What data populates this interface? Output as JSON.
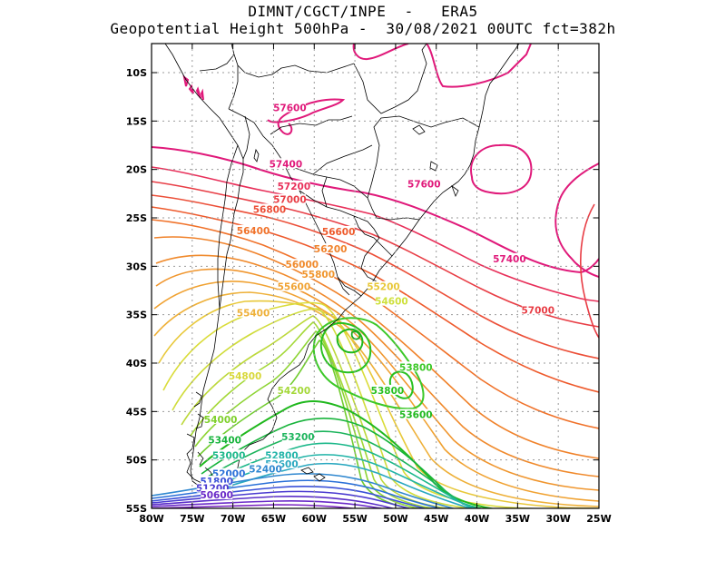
{
  "header": {
    "line1": "DIMNT/CGCT/INPE  -   ERA5",
    "line2": "Geopotential Height 500hPa -  30/08/2021 00UTC fct=382h"
  },
  "map": {
    "lat_range": [
      -55,
      -7
    ],
    "lon_range": [
      -80,
      -25
    ],
    "lat_ticks": [
      {
        "v": -10,
        "label": "10S"
      },
      {
        "v": -15,
        "label": "15S"
      },
      {
        "v": -20,
        "label": "20S"
      },
      {
        "v": -25,
        "label": "25S"
      },
      {
        "v": -30,
        "label": "30S"
      },
      {
        "v": -35,
        "label": "35S"
      },
      {
        "v": -40,
        "label": "40S"
      },
      {
        "v": -45,
        "label": "45S"
      },
      {
        "v": -50,
        "label": "50S"
      },
      {
        "v": -55,
        "label": "55S"
      }
    ],
    "lon_ticks": [
      {
        "v": -80,
        "label": "80W"
      },
      {
        "v": -75,
        "label": "75W"
      },
      {
        "v": -70,
        "label": "70W"
      },
      {
        "v": -65,
        "label": "65W"
      },
      {
        "v": -60,
        "label": "60W"
      },
      {
        "v": -55,
        "label": "55W"
      },
      {
        "v": -50,
        "label": "50W"
      },
      {
        "v": -45,
        "label": "45W"
      },
      {
        "v": -40,
        "label": "40W"
      },
      {
        "v": -35,
        "label": "35W"
      },
      {
        "v": -30,
        "label": "30W"
      },
      {
        "v": -25,
        "label": "25W"
      }
    ],
    "contour_labels": [
      {
        "text": "57600",
        "lon": -63,
        "lat": -13.6,
        "color": "#e0197a"
      },
      {
        "text": "57600",
        "lon": -46.5,
        "lat": -21.5,
        "color": "#e0197a"
      },
      {
        "text": "57400",
        "lon": -63.5,
        "lat": -19.4,
        "color": "#e0197a"
      },
      {
        "text": "57400",
        "lon": -36,
        "lat": -29.2,
        "color": "#e0197a"
      },
      {
        "text": "57200",
        "lon": -62.5,
        "lat": -21.7,
        "color": "#e8305a"
      },
      {
        "text": "57000",
        "lon": -63,
        "lat": -23.1,
        "color": "#e83d45"
      },
      {
        "text": "57000",
        "lon": -32.5,
        "lat": -34.5,
        "color": "#e83d45"
      },
      {
        "text": "56800",
        "lon": -65.5,
        "lat": -24.1,
        "color": "#ec4f38"
      },
      {
        "text": "56600",
        "lon": -57,
        "lat": -26.4,
        "color": "#ee5a2c"
      },
      {
        "text": "56400",
        "lon": -67.5,
        "lat": -26.3,
        "color": "#f0722a"
      },
      {
        "text": "56200",
        "lon": -58,
        "lat": -28.2,
        "color": "#f0822a"
      },
      {
        "text": "56000",
        "lon": -61.5,
        "lat": -29.8,
        "color": "#f08a2c"
      },
      {
        "text": "55800",
        "lon": -59.5,
        "lat": -30.8,
        "color": "#f0962e"
      },
      {
        "text": "55600",
        "lon": -62.5,
        "lat": -32.1,
        "color": "#f0a232"
      },
      {
        "text": "55400",
        "lon": -67.5,
        "lat": -34.8,
        "color": "#eeb038"
      },
      {
        "text": "55200",
        "lon": -51.5,
        "lat": -32.1,
        "color": "#e8c83a"
      },
      {
        "text": "54800",
        "lon": -68.5,
        "lat": -41.3,
        "color": "#d8d83a"
      },
      {
        "text": "54600",
        "lon": -50.5,
        "lat": -33.6,
        "color": "#cfe03c"
      },
      {
        "text": "54200",
        "lon": -62.5,
        "lat": -42.8,
        "color": "#a4d838"
      },
      {
        "text": "54000",
        "lon": -71.5,
        "lat": -45.8,
        "color": "#7fd02c"
      },
      {
        "text": "53800",
        "lon": -47.5,
        "lat": -40.4,
        "color": "#3cc828"
      },
      {
        "text": "53800",
        "lon": -51,
        "lat": -42.8,
        "color": "#28c020"
      },
      {
        "text": "53600",
        "lon": -47.5,
        "lat": -45.3,
        "color": "#20b81e"
      },
      {
        "text": "53400",
        "lon": -71,
        "lat": -47.9,
        "color": "#18b43c"
      },
      {
        "text": "53200",
        "lon": -62,
        "lat": -47.6,
        "color": "#1cb45c"
      },
      {
        "text": "53000",
        "lon": -70.5,
        "lat": -49.5,
        "color": "#1cb88a"
      },
      {
        "text": "52800",
        "lon": -64,
        "lat": -49.5,
        "color": "#22b4a8"
      },
      {
        "text": "52600",
        "lon": -64,
        "lat": -50.4,
        "color": "#2aa8c0"
      },
      {
        "text": "52400",
        "lon": -66,
        "lat": -50.9,
        "color": "#3088d0"
      },
      {
        "text": "52000",
        "lon": -70.5,
        "lat": -51.4,
        "color": "#2a70d8"
      },
      {
        "text": "51800",
        "lon": -72,
        "lat": -52.2,
        "color": "#3a50d8"
      },
      {
        "text": "51200",
        "lon": -72.5,
        "lat": -52.9,
        "color": "#4a3ad0"
      },
      {
        "text": "50600",
        "lon": -72,
        "lat": -53.6,
        "color": "#6a2ac8"
      }
    ]
  }
}
